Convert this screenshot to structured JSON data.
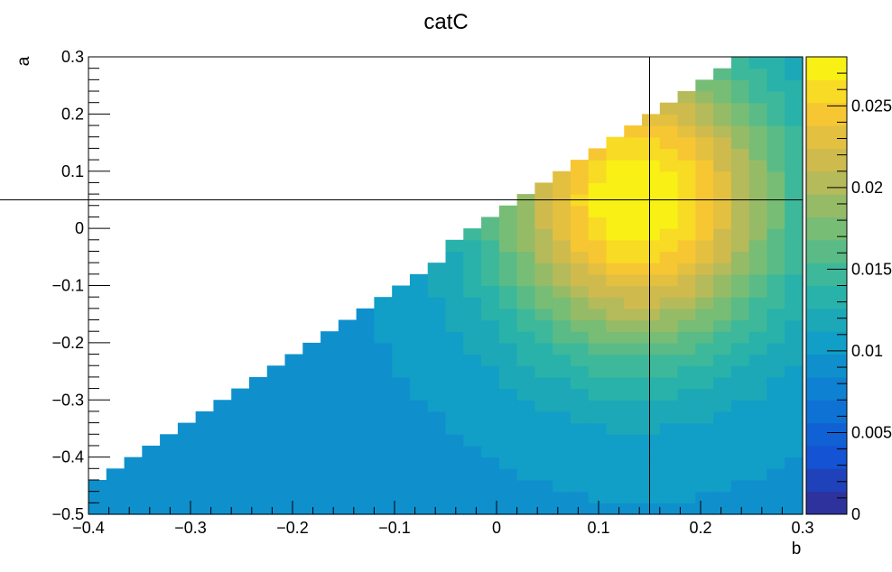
{
  "chart_data": {
    "type": "heatmap",
    "title": "catC",
    "xlabel": "b",
    "ylabel": "a",
    "xlim": [
      -0.4,
      0.3
    ],
    "ylim": [
      -0.5,
      0.3
    ],
    "x_ticks": [
      "−0.4",
      "−0.3",
      "−0.2",
      "−0.1",
      "0",
      "0.1",
      "0.2",
      "0.3"
    ],
    "y_ticks": [
      "−0.5",
      "−0.4",
      "−0.3",
      "−0.2",
      "−0.1",
      "0",
      "0.1",
      "0.2",
      "0.3"
    ],
    "colorbar": {
      "range": [
        0,
        0.028
      ],
      "ticks": [
        "0",
        "0.005",
        "0.01",
        "0.015",
        "0.02",
        "0.025"
      ],
      "levels": 20
    },
    "marker": {
      "b": 0.15,
      "a": 0.05
    },
    "grid": false,
    "nx": 40,
    "ny": 40,
    "description": "Cell value z(b,a) peaks (~0.028) near b=0.14, a=0.05; filled region is a <= 0.02 + 1.2*b (upper-left empty)."
  }
}
